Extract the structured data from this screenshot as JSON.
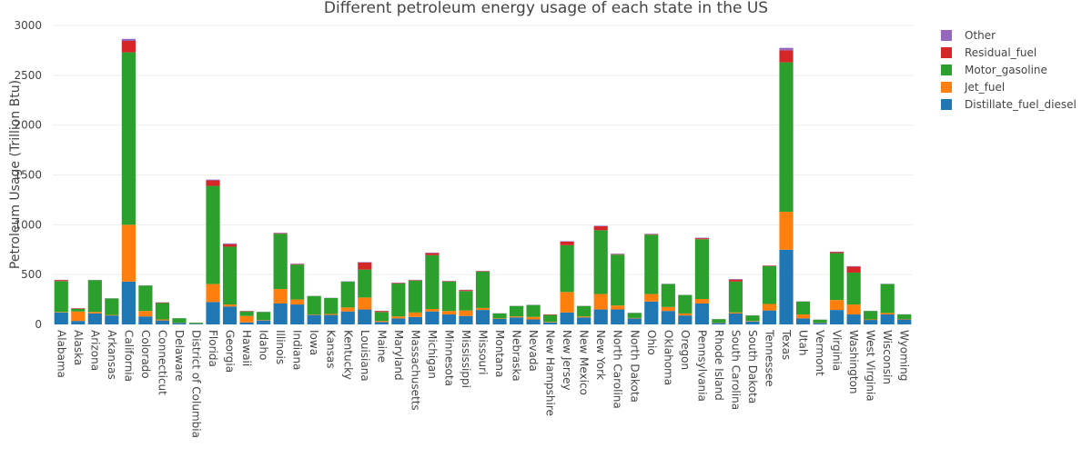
{
  "chart_data": {
    "type": "bar",
    "stacked": true,
    "title": "Different petroleum energy usage of each state in the US",
    "xlabel": "",
    "ylabel": "Petroleum Usage (Trillion Btu)",
    "ylim": [
      0,
      3000
    ],
    "yticks": [
      0,
      500,
      1000,
      1500,
      2000,
      2500,
      3000
    ],
    "yticklabels": [
      "0",
      "500",
      "1000",
      "1500",
      "2000",
      "2500",
      "3000"
    ],
    "grid": true,
    "legend_position": "top-right",
    "categories": [
      "Alabama",
      "Alaska",
      "Arizona",
      "Arkansas",
      "California",
      "Colorado",
      "Connecticut",
      "Delaware",
      "District of Columbia",
      "Florida",
      "Georgia",
      "Hawaii",
      "Idaho",
      "Illinois",
      "Indiana",
      "Iowa",
      "Kansas",
      "Kentucky",
      "Louisiana",
      "Maine",
      "Maryland",
      "Massachusetts",
      "Michigan",
      "Minnesota",
      "Mississippi",
      "Missouri",
      "Montana",
      "Nebraska",
      "Nevada",
      "New Hampshire",
      "New Jersey",
      "New Mexico",
      "New York",
      "North Carolina",
      "North Dakota",
      "Ohio",
      "Oklahoma",
      "Oregon",
      "Pennsylvania",
      "Rhode Island",
      "South Carolina",
      "South Dakota",
      "Tennessee",
      "Texas",
      "Utah",
      "Vermont",
      "Virginia",
      "Washington",
      "West Virginia",
      "Wisconsin",
      "Wyoming"
    ],
    "series": [
      {
        "name": "Distillate_fuel_diesel",
        "color": "#1f77b4",
        "values": [
          120,
          35,
          110,
          90,
          430,
          80,
          40,
          15,
          5,
          225,
          180,
          20,
          40,
          210,
          200,
          95,
          95,
          130,
          150,
          25,
          60,
          75,
          130,
          100,
          85,
          145,
          55,
          70,
          50,
          20,
          120,
          70,
          150,
          150,
          60,
          230,
          135,
          90,
          210,
          15,
          110,
          30,
          140,
          750,
          60,
          15,
          145,
          100,
          45,
          100,
          50
        ]
      },
      {
        "name": "Jet_fuel",
        "color": "#ff7f0e",
        "values": [
          5,
          95,
          15,
          5,
          570,
          55,
          10,
          2,
          2,
          180,
          20,
          65,
          5,
          145,
          50,
          5,
          10,
          40,
          120,
          10,
          20,
          45,
          25,
          35,
          55,
          20,
          5,
          10,
          25,
          5,
          205,
          10,
          155,
          40,
          5,
          75,
          40,
          20,
          45,
          3,
          10,
          5,
          65,
          380,
          40,
          3,
          100,
          100,
          5,
          15,
          5
        ]
      },
      {
        "name": "Motor_gasoline",
        "color": "#2ca02c",
        "values": [
          310,
          25,
          320,
          165,
          1730,
          255,
          165,
          45,
          10,
          985,
          580,
          45,
          80,
          555,
          350,
          185,
          160,
          260,
          280,
          90,
          330,
          320,
          540,
          295,
          195,
          365,
          50,
          105,
          120,
          70,
          470,
          105,
          640,
          510,
          50,
          595,
          230,
          185,
          600,
          35,
          310,
          55,
          380,
          1500,
          130,
          30,
          470,
          320,
          85,
          290,
          45
        ]
      },
      {
        "name": "Residual_fuel",
        "color": "#d62728",
        "values": [
          10,
          5,
          0,
          0,
          115,
          0,
          5,
          0,
          0,
          55,
          25,
          5,
          0,
          5,
          5,
          0,
          0,
          0,
          70,
          10,
          5,
          5,
          20,
          5,
          10,
          5,
          0,
          0,
          0,
          5,
          35,
          0,
          40,
          5,
          0,
          5,
          0,
          0,
          10,
          0,
          20,
          0,
          5,
          120,
          0,
          0,
          10,
          60,
          0,
          0,
          0
        ]
      },
      {
        "name": "Other",
        "color": "#9467bd",
        "values": [
          3,
          2,
          2,
          2,
          20,
          3,
          2,
          1,
          1,
          8,
          8,
          2,
          2,
          5,
          5,
          2,
          2,
          3,
          5,
          2,
          3,
          3,
          5,
          3,
          3,
          3,
          2,
          2,
          2,
          1,
          5,
          2,
          5,
          5,
          2,
          5,
          3,
          2,
          5,
          1,
          5,
          2,
          3,
          25,
          2,
          1,
          5,
          5,
          2,
          3,
          2
        ]
      }
    ]
  }
}
